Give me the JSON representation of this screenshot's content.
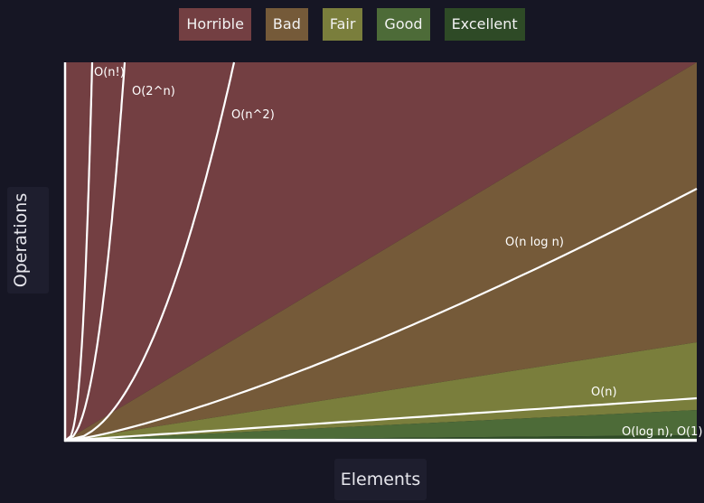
{
  "legend": [
    {
      "label": "Horrible",
      "color": "#733f42"
    },
    {
      "label": "Bad",
      "color": "#755a39"
    },
    {
      "label": "Fair",
      "color": "#7a7e3c"
    },
    {
      "label": "Good",
      "color": "#4d6b38"
    },
    {
      "label": "Excellent",
      "color": "#2e4a26"
    }
  ],
  "chart_data": {
    "type": "area",
    "xlabel": "Elements",
    "ylabel": "Operations",
    "grid": false,
    "legend_position": "top-center",
    "regions": [
      {
        "name": "Horrible",
        "color": "#733f42"
      },
      {
        "name": "Bad",
        "color": "#755a39"
      },
      {
        "name": "Fair",
        "color": "#7a7e3c"
      },
      {
        "name": "Good",
        "color": "#4d6b38"
      },
      {
        "name": "Excellent",
        "color": "#2e4a26"
      }
    ],
    "curves": [
      {
        "label": "O(n!)"
      },
      {
        "label": "O(2^n)"
      },
      {
        "label": "O(n^2)"
      },
      {
        "label": "O(n log n)"
      },
      {
        "label": "O(n)"
      },
      {
        "label": "O(log n), O(1)"
      }
    ]
  }
}
